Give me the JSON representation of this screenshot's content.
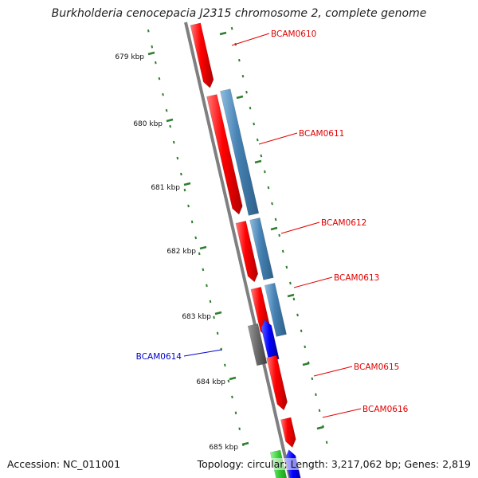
{
  "header": {
    "title": "Burkholderia cenocepacia J2315 chromosome 2, complete genome"
  },
  "footer": {
    "accession": "Accession: NC_011001",
    "summary": "Topology: circular; Length: 3,217,062 bp; Genes: 2,819"
  },
  "colors": {
    "backbone": "#7f7f7f",
    "forward_gene": "#ff0000",
    "reverse_gene": "#4682b4",
    "other_gene": "#0000ff",
    "pseudo_gene": "#6e6e6e",
    "rna_gene": "#33cc33",
    "tick": "#2e7d2e",
    "label_red": "#e00000",
    "label_blue": "#0000cc"
  },
  "map": {
    "ticks": [
      {
        "label": "679 kbp"
      },
      {
        "label": "680 kbp"
      },
      {
        "label": "681 kbp"
      },
      {
        "label": "682 kbp"
      },
      {
        "label": "683 kbp"
      },
      {
        "label": "684 kbp"
      },
      {
        "label": "685 kbp"
      }
    ],
    "gene_labels": [
      {
        "name": "BCAM0610",
        "color": "red"
      },
      {
        "name": "BCAM0611",
        "color": "red"
      },
      {
        "name": "BCAM0612",
        "color": "red"
      },
      {
        "name": "BCAM0613",
        "color": "red"
      },
      {
        "name": "BCAM0614",
        "color": "blue"
      },
      {
        "name": "BCAM0615",
        "color": "red"
      },
      {
        "name": "BCAM0616",
        "color": "red"
      }
    ]
  }
}
